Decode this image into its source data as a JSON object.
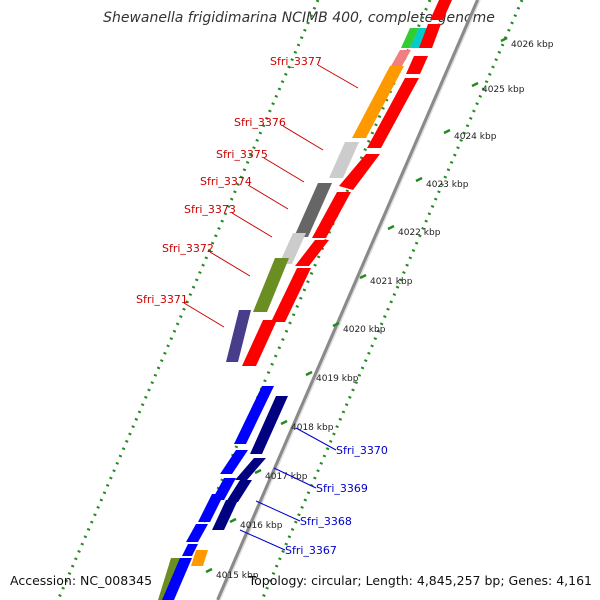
{
  "title": "Shewanella frigidimarina NCIMB 400, complete genome",
  "footer": {
    "accession": "Accession: NC_008345",
    "topology": "Topology: circular; Length: 4,845,257 bp; Genes: 4,161"
  },
  "scale_ticks": [
    "4026 kbp",
    "4025 kbp",
    "4024 kbp",
    "4023 kbp",
    "4022 kbp",
    "4021 kbp",
    "4020 kbp",
    "4019 kbp",
    "4018 kbp",
    "4017 kbp",
    "4016 kbp",
    "4015 kbp"
  ],
  "gene_labels": [
    {
      "name": "Sfri_3377",
      "strand": "reverse"
    },
    {
      "name": "Sfri_3376",
      "strand": "reverse"
    },
    {
      "name": "Sfri_3375",
      "strand": "reverse"
    },
    {
      "name": "Sfri_3374",
      "strand": "reverse"
    },
    {
      "name": "Sfri_3373",
      "strand": "reverse"
    },
    {
      "name": "Sfri_3372",
      "strand": "reverse"
    },
    {
      "name": "Sfri_3371",
      "strand": "reverse"
    },
    {
      "name": "Sfri_3370",
      "strand": "forward"
    },
    {
      "name": "Sfri_3369",
      "strand": "forward"
    },
    {
      "name": "Sfri_3368",
      "strand": "forward"
    },
    {
      "name": "Sfri_3367",
      "strand": "forward"
    }
  ],
  "colors": {
    "reverse_label": "#cc0000",
    "forward_label": "#0000cc",
    "reverse_orf": "#ff0000",
    "forward_orf": "#0000ff",
    "forward_orf_dark": "#000080",
    "cog_orange": "#ff9900",
    "cog_olive": "#6b8e23",
    "cog_purple": "#483d8b",
    "cog_lightgray": "#cccccc",
    "cog_darkgray": "#666666",
    "cog_salmon": "#f08080",
    "cog_teal": "#00cccc",
    "cog_green": "#33cc33",
    "backbone": "#999999",
    "tick_green": "#228b22"
  }
}
